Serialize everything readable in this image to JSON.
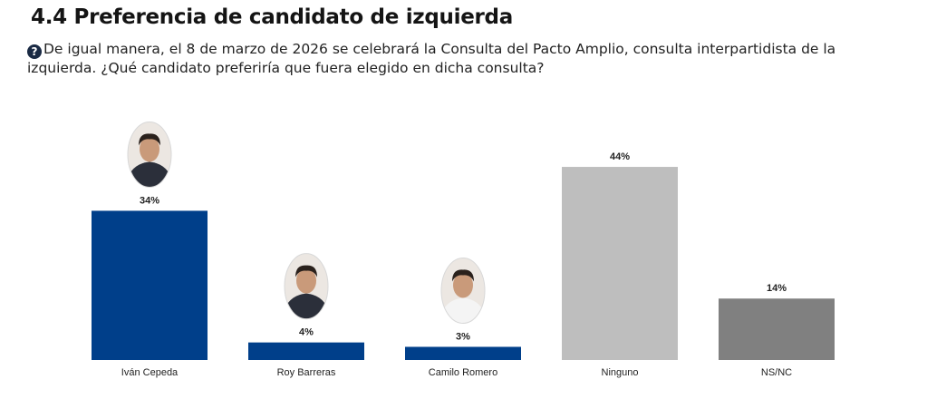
{
  "header": {
    "title": "4.4 Preferencia de candidato de izquierda",
    "question": "De igual manera, el 8 de marzo de 2026 se celebrará la Consulta del Pacto Amplio, consulta interpartidista de la izquierda. ¿Qué candidato preferiría que fuera elegido en dicha consulta?",
    "question_icon": "question-circle-icon"
  },
  "chart_data": {
    "type": "bar",
    "categories": [
      "Iván Cepeda",
      "Roy Barreras",
      "Camilo Romero",
      "Ninguno",
      "NS/NC"
    ],
    "values": [
      34,
      4,
      3,
      44,
      14
    ],
    "value_labels": [
      "34%",
      "4%",
      "3%",
      "44%",
      "14%"
    ],
    "colors": [
      "#003f8a",
      "#003f8a",
      "#003f8a",
      "#bebebe",
      "#808080"
    ],
    "photos": [
      true,
      true,
      true,
      false,
      false
    ],
    "ylim": [
      0,
      50
    ],
    "grid": false,
    "legend": "none"
  }
}
